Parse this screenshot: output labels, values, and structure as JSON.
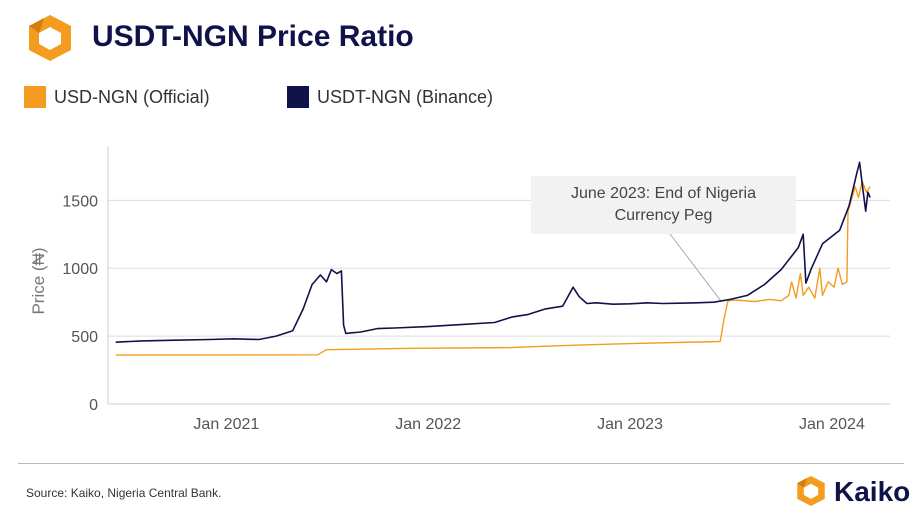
{
  "header": {
    "title": "USDT-NGN Price Ratio"
  },
  "legend": [
    {
      "label": "USD-NGN (Official)",
      "color": "#f39c1f"
    },
    {
      "label": "USDT-NGN (Binance)",
      "color": "#10124a"
    }
  ],
  "footer": {
    "source": "Source: Kaiko, Nigeria Central Bank.",
    "brand": "Kaiko"
  },
  "colors": {
    "brand_navy": "#10124a",
    "brand_orange": "#f39c1f"
  },
  "chart_data": {
    "type": "line",
    "title": "USDT-NGN Price Ratio",
    "xlabel": "",
    "ylabel": "Price (₦)",
    "x_type": "date",
    "xlim": [
      "2020-06-01",
      "2024-04-15"
    ],
    "ylim": [
      0,
      1900
    ],
    "y_ticks": [
      0,
      500,
      1000,
      1500
    ],
    "x_ticks": [
      {
        "date": "2021-01-01",
        "label": "Jan 2021"
      },
      {
        "date": "2022-01-01",
        "label": "Jan 2022"
      },
      {
        "date": "2023-01-01",
        "label": "Jan 2023"
      },
      {
        "date": "2024-01-01",
        "label": "Jan 2024"
      }
    ],
    "grid": "horizontal",
    "legend_position": "top-left",
    "annotations": [
      {
        "text": [
          "June 2023: End of Nigeria",
          "Currency Peg"
        ],
        "date": "2023-06-15",
        "value": 740
      }
    ],
    "series": [
      {
        "name": "USD-NGN (Official)",
        "color": "#f39c1f",
        "points": [
          [
            "2020-06-15",
            360
          ],
          [
            "2021-06-15",
            362
          ],
          [
            "2021-07-01",
            400
          ],
          [
            "2021-12-01",
            410
          ],
          [
            "2022-06-01",
            415
          ],
          [
            "2022-09-01",
            430
          ],
          [
            "2023-01-01",
            445
          ],
          [
            "2023-06-13",
            460
          ],
          [
            "2023-06-20",
            630
          ],
          [
            "2023-06-27",
            760
          ],
          [
            "2023-07-10",
            765
          ],
          [
            "2023-08-15",
            755
          ],
          [
            "2023-09-10",
            770
          ],
          [
            "2023-10-01",
            760
          ],
          [
            "2023-10-15",
            800
          ],
          [
            "2023-10-20",
            900
          ],
          [
            "2023-10-28",
            780
          ],
          [
            "2023-11-05",
            960
          ],
          [
            "2023-11-10",
            800
          ],
          [
            "2023-11-20",
            860
          ],
          [
            "2023-12-01",
            780
          ],
          [
            "2023-12-10",
            1000
          ],
          [
            "2023-12-15",
            800
          ],
          [
            "2023-12-25",
            900
          ],
          [
            "2024-01-05",
            860
          ],
          [
            "2024-01-12",
            1000
          ],
          [
            "2024-01-20",
            880
          ],
          [
            "2024-01-28",
            900
          ],
          [
            "2024-01-30",
            1420
          ],
          [
            "2024-02-05",
            1500
          ],
          [
            "2024-02-12",
            1600
          ],
          [
            "2024-02-18",
            1520
          ],
          [
            "2024-02-25",
            1640
          ],
          [
            "2024-03-03",
            1560
          ],
          [
            "2024-03-10",
            1600
          ]
        ]
      },
      {
        "name": "USDT-NGN (Binance)",
        "color": "#10124a",
        "points": [
          [
            "2020-06-15",
            455
          ],
          [
            "2020-08-01",
            465
          ],
          [
            "2020-10-01",
            470
          ],
          [
            "2020-12-01",
            475
          ],
          [
            "2021-01-15",
            480
          ],
          [
            "2021-03-01",
            475
          ],
          [
            "2021-04-01",
            500
          ],
          [
            "2021-05-01",
            540
          ],
          [
            "2021-05-20",
            700
          ],
          [
            "2021-06-05",
            880
          ],
          [
            "2021-06-20",
            950
          ],
          [
            "2021-07-01",
            900
          ],
          [
            "2021-07-10",
            990
          ],
          [
            "2021-07-20",
            960
          ],
          [
            "2021-07-28",
            980
          ],
          [
            "2021-08-01",
            580
          ],
          [
            "2021-08-05",
            520
          ],
          [
            "2021-09-01",
            530
          ],
          [
            "2021-10-01",
            555
          ],
          [
            "2021-11-01",
            560
          ],
          [
            "2022-01-01",
            570
          ],
          [
            "2022-03-01",
            585
          ],
          [
            "2022-05-01",
            600
          ],
          [
            "2022-06-01",
            640
          ],
          [
            "2022-07-01",
            660
          ],
          [
            "2022-08-01",
            700
          ],
          [
            "2022-09-01",
            720
          ],
          [
            "2022-09-20",
            860
          ],
          [
            "2022-10-01",
            790
          ],
          [
            "2022-10-15",
            740
          ],
          [
            "2022-11-01",
            745
          ],
          [
            "2022-12-01",
            735
          ],
          [
            "2023-01-01",
            738
          ],
          [
            "2023-02-01",
            745
          ],
          [
            "2023-03-01",
            740
          ],
          [
            "2023-04-01",
            742
          ],
          [
            "2023-05-01",
            745
          ],
          [
            "2023-06-01",
            750
          ],
          [
            "2023-07-01",
            770
          ],
          [
            "2023-08-01",
            800
          ],
          [
            "2023-09-01",
            880
          ],
          [
            "2023-10-01",
            990
          ],
          [
            "2023-11-01",
            1150
          ],
          [
            "2023-11-10",
            1250
          ],
          [
            "2023-11-15",
            890
          ],
          [
            "2023-11-25",
            1000
          ],
          [
            "2023-12-15",
            1180
          ],
          [
            "2024-01-15",
            1280
          ],
          [
            "2024-02-01",
            1460
          ],
          [
            "2024-02-15",
            1700
          ],
          [
            "2024-02-20",
            1780
          ],
          [
            "2024-02-26",
            1580
          ],
          [
            "2024-03-02",
            1420
          ],
          [
            "2024-03-06",
            1560
          ],
          [
            "2024-03-10",
            1520
          ]
        ]
      }
    ]
  }
}
